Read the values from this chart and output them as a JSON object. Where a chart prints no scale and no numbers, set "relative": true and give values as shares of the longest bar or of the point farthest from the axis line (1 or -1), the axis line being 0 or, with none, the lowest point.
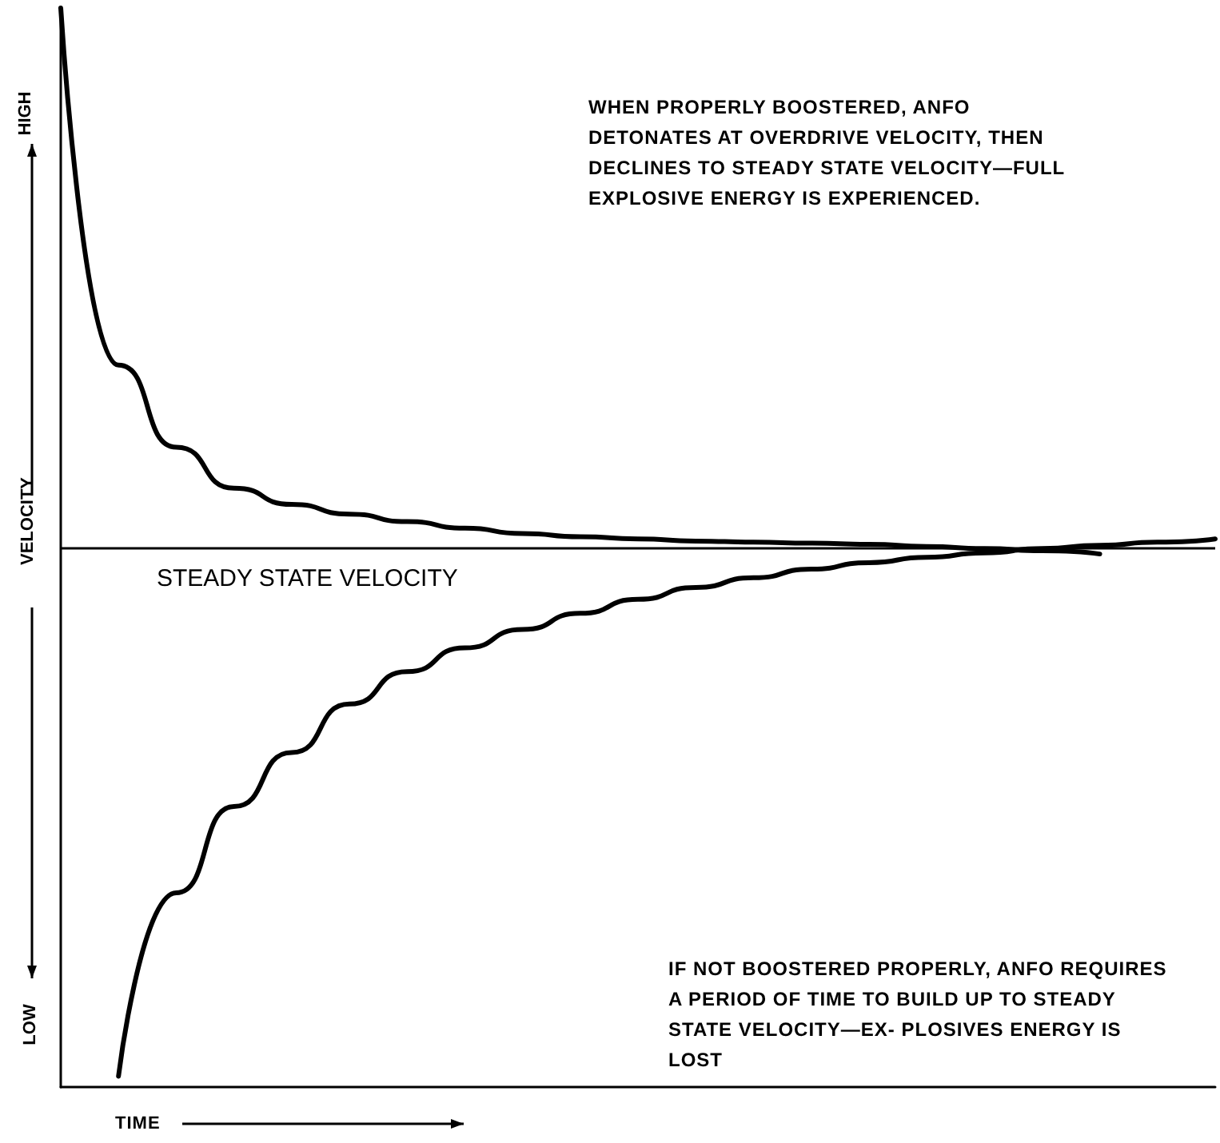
{
  "chart_data": {
    "type": "line",
    "relative": true,
    "xlabel": "TIME",
    "ylabel": "VELOCITY",
    "categories": [
      null,
      null,
      null,
      null,
      null,
      null,
      null,
      null,
      null,
      null,
      null,
      null,
      null,
      null,
      null,
      null,
      null,
      null,
      null,
      null,
      null
    ],
    "series": [
      {
        "color": "#000000",
        "values": [
          1.0,
          0.669,
          0.593,
          0.555,
          0.54,
          0.531,
          0.524,
          0.518,
          0.513,
          0.51,
          0.508,
          0.506,
          0.505,
          0.504,
          0.503,
          0.501,
          0.499,
          0.497,
          0.494,
          null,
          null
        ]
      },
      {
        "color": "#000000",
        "values": [
          null,
          0.01,
          0.18,
          0.26,
          0.31,
          0.355,
          0.385,
          0.407,
          0.424,
          0.439,
          0.452,
          0.463,
          0.472,
          0.48,
          0.486,
          0.491,
          0.495,
          0.499,
          0.502,
          0.505,
          0.508
        ]
      }
    ],
    "ref_lines": [
      {
        "axis": "y",
        "value": 0.497,
        "label": "STEADY STATE VELOCITY",
        "color": "#000000"
      }
    ],
    "annotations": [
      "HIGH",
      "LOW",
      "WHEN PROPERLY BOOSTERED, ANFO DETONATES AT OVERDRIVE VELOCITY, THEN DECLINES TO STEADY STATE VELOCITY—FULL EXPLOSIVE ENERGY IS EXPERIENCED.",
      "IF NOT BOOSTERED PROPERLY, ANFO REQUIRES A PERIOD OF TIME TO BUILD UP TO STEADY STATE VELOCITY—EX- PLOSIVES ENERGY IS LOST"
    ],
    "marker": "none",
    "grid": false
  }
}
